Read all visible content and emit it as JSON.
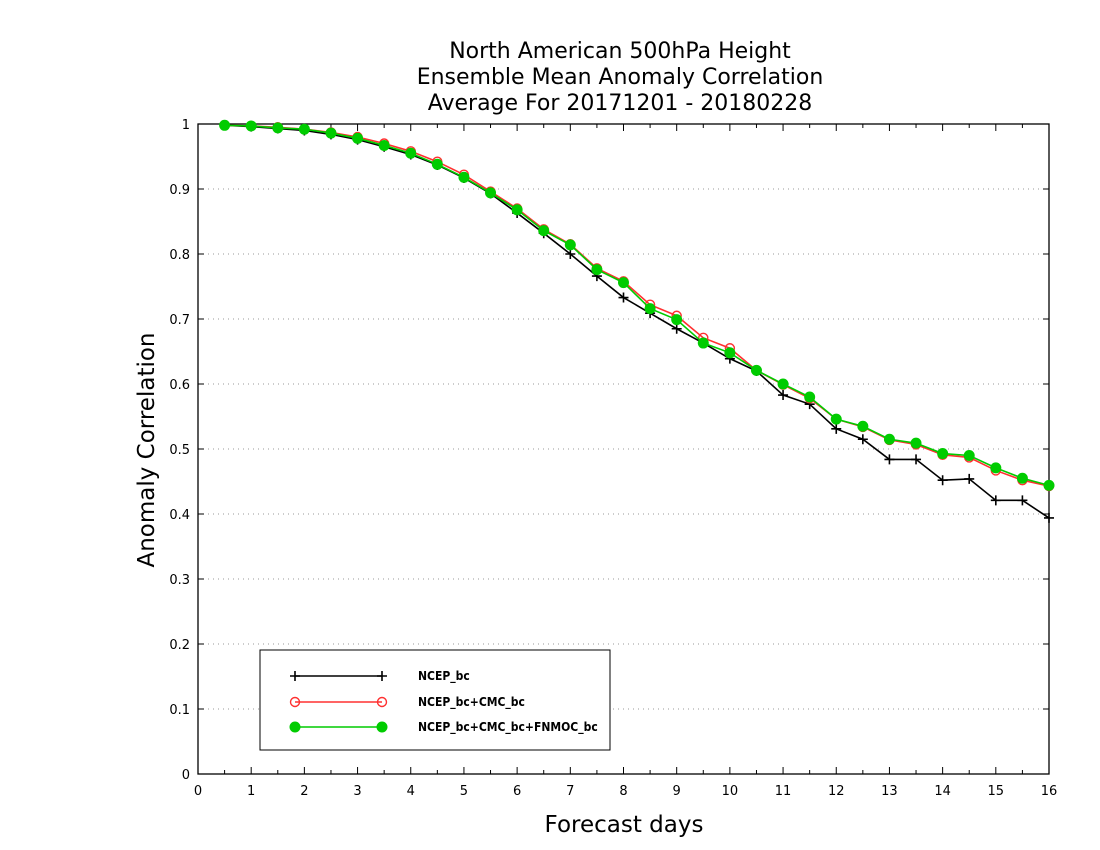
{
  "chart_data": {
    "type": "line",
    "title": [
      "North American 500hPa Height",
      "Ensemble Mean Anomaly Correlation",
      "Average For 20171201 - 20180228"
    ],
    "xlabel": "Forecast days",
    "ylabel": "Anomaly Correlation",
    "xlim": [
      0,
      16
    ],
    "ylim": [
      0,
      1
    ],
    "xticks": [
      "0",
      "1",
      "2",
      "3",
      "4",
      "5",
      "6",
      "7",
      "8",
      "9",
      "10",
      "11",
      "12",
      "13",
      "14",
      "15",
      "16"
    ],
    "yticks": [
      "0",
      "0.1",
      "0.2",
      "0.3",
      "0.4",
      "0.5",
      "0.6",
      "0.7",
      "0.8",
      "0.9",
      "1"
    ],
    "grid": "horizontal dotted",
    "legend_position": "bottom-left",
    "x": [
      0.5,
      1,
      1.5,
      2,
      2.5,
      3,
      3.5,
      4,
      4.5,
      5,
      5.5,
      6,
      6.5,
      7,
      7.5,
      8,
      8.5,
      9,
      9.5,
      10,
      10.5,
      11,
      11.5,
      12,
      12.5,
      13,
      13.5,
      14,
      14.5,
      15,
      15.5,
      16
    ],
    "series": [
      {
        "name": "NCEP_bc",
        "color": "#000000",
        "marker": "plus",
        "values": [
          0.998,
          0.996,
          0.993,
          0.99,
          0.984,
          0.976,
          0.965,
          0.953,
          0.937,
          0.917,
          0.893,
          0.863,
          0.832,
          0.8,
          0.766,
          0.733,
          0.709,
          0.685,
          0.663,
          0.639,
          0.62,
          0.583,
          0.569,
          0.531,
          0.515,
          0.484,
          0.484,
          0.452,
          0.454,
          0.421,
          0.421,
          0.394
        ]
      },
      {
        "name": "NCEP_bc+CMC_bc",
        "color": "#ff3030",
        "marker": "open-circle",
        "values": [
          0.998,
          0.997,
          0.995,
          0.992,
          0.987,
          0.98,
          0.97,
          0.958,
          0.942,
          0.922,
          0.896,
          0.87,
          0.838,
          0.815,
          0.778,
          0.758,
          0.722,
          0.705,
          0.671,
          0.655,
          0.621,
          0.599,
          0.578,
          0.546,
          0.534,
          0.514,
          0.507,
          0.491,
          0.487,
          0.467,
          0.452,
          0.443
        ]
      },
      {
        "name": "NCEP_bc+CMC_bc+FNMOC_bc",
        "color": "#00cc00",
        "marker": "filled-circle",
        "values": [
          0.998,
          0.997,
          0.994,
          0.992,
          0.986,
          0.978,
          0.967,
          0.955,
          0.938,
          0.918,
          0.894,
          0.868,
          0.836,
          0.814,
          0.776,
          0.756,
          0.716,
          0.699,
          0.663,
          0.648,
          0.621,
          0.6,
          0.58,
          0.546,
          0.535,
          0.515,
          0.509,
          0.493,
          0.49,
          0.471,
          0.455,
          0.444
        ]
      }
    ]
  }
}
